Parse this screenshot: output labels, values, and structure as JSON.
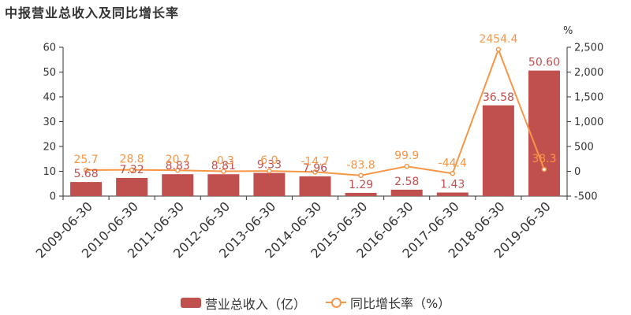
{
  "title": "中报营业总收入及同比增长率",
  "chart_data": {
    "type": "bar+line",
    "categories": [
      "2009-06-30",
      "2010-06-30",
      "2011-06-30",
      "2012-06-30",
      "2013-06-30",
      "2014-06-30",
      "2015-06-30",
      "2016-06-30",
      "2017-06-30",
      "2018-06-30",
      "2019-06-30"
    ],
    "series": [
      {
        "name": "营业总收入（亿）",
        "type": "bar",
        "axis": "left",
        "color": "#c0504d",
        "values": [
          5.68,
          7.32,
          8.83,
          8.81,
          9.33,
          7.96,
          1.29,
          2.58,
          1.43,
          36.58,
          50.6
        ],
        "labels": [
          "5.68",
          "7.32",
          "8.83",
          "8.81",
          "9.33",
          "7.96",
          "1.29",
          "2.58",
          "1.43",
          "36.58",
          "50.60"
        ]
      },
      {
        "name": "同比增长率（%）",
        "type": "line",
        "axis": "right",
        "color": "#f79646",
        "values": [
          25.7,
          28.8,
          20.7,
          -0.3,
          6.0,
          -14.7,
          -83.8,
          99.9,
          -44.4,
          2454.4,
          38.3
        ],
        "labels": [
          "25.7",
          "28.8",
          "20.7",
          "-0.3",
          "6.0",
          "-14.7",
          "-83.8",
          "99.9",
          "-44.4",
          "2454.4",
          "38.3"
        ]
      }
    ],
    "y_left": {
      "ylim": [
        0,
        60
      ],
      "ticks": [
        "0",
        "10",
        "20",
        "30",
        "40",
        "50",
        "60"
      ]
    },
    "y_right": {
      "ylim": [
        -500,
        2500
      ],
      "unit": "%",
      "ticks": [
        "-500",
        "0",
        "500",
        "1,000",
        "1,500",
        "2,000",
        "2,500"
      ]
    },
    "grid": false,
    "legend_position": "bottom"
  }
}
